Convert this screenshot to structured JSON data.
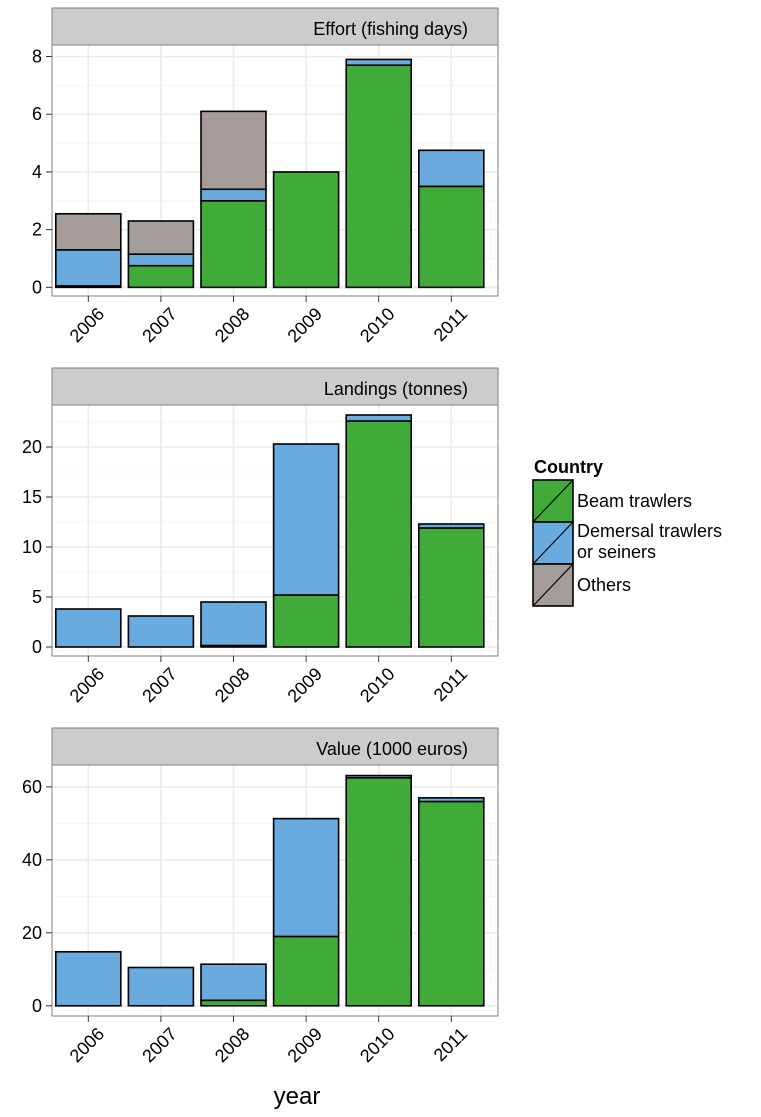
{
  "colors": {
    "strip_bg": "#cccccc",
    "panel_border": "#7f7f7f",
    "grid": "#ebebeb"
  },
  "xlabel": "year",
  "legend": {
    "title": "Country",
    "position": "right",
    "entries": [
      {
        "label_lines": [
          "Beam trawlers"
        ],
        "color": "#41ab3a"
      },
      {
        "label_lines": [
          "Demersal trawlers",
          "or seiners"
        ],
        "color": "#6aabdf"
      },
      {
        "label_lines": [
          "Others"
        ],
        "color": "#a39c98"
      }
    ]
  },
  "chart_data": [
    {
      "type": "bar",
      "stacked": true,
      "title": "Effort (fishing days)",
      "categories": [
        "2006",
        "2007",
        "2008",
        "2009",
        "2010",
        "2011"
      ],
      "series": [
        {
          "name": "Beam trawlers",
          "values": [
            0.05,
            0.75,
            3.0,
            4.0,
            7.7,
            3.5
          ]
        },
        {
          "name": "Demersal trawlers or seiners",
          "values": [
            1.25,
            0.4,
            0.4,
            0.0,
            0.2,
            1.25
          ]
        },
        {
          "name": "Others",
          "values": [
            1.25,
            1.15,
            2.7,
            0.0,
            0.0,
            0.0
          ]
        }
      ],
      "ylim": [
        -0.3,
        8.4
      ],
      "yticks": [
        0,
        2,
        4,
        6,
        8
      ],
      "grid": true
    },
    {
      "type": "bar",
      "stacked": true,
      "title": "Landings (tonnes)",
      "categories": [
        "2006",
        "2007",
        "2008",
        "2009",
        "2010",
        "2011"
      ],
      "series": [
        {
          "name": "Beam trawlers",
          "values": [
            0.0,
            0.0,
            0.15,
            5.2,
            22.6,
            11.9
          ]
        },
        {
          "name": "Demersal trawlers or seiners",
          "values": [
            3.8,
            3.1,
            4.35,
            15.1,
            0.6,
            0.4
          ]
        },
        {
          "name": "Others",
          "values": [
            0.0,
            0.0,
            0.0,
            0.0,
            0.0,
            0.0
          ]
        }
      ],
      "ylim": [
        -0.9,
        24.2
      ],
      "yticks": [
        0,
        5,
        10,
        15,
        20
      ],
      "grid": true
    },
    {
      "type": "bar",
      "stacked": true,
      "title": "Value (1000 euros)",
      "categories": [
        "2006",
        "2007",
        "2008",
        "2009",
        "2010",
        "2011"
      ],
      "series": [
        {
          "name": "Beam trawlers",
          "values": [
            0.0,
            0.0,
            1.5,
            19.0,
            62.5,
            56.0
          ]
        },
        {
          "name": "Demersal trawlers or seiners",
          "values": [
            14.8,
            10.5,
            9.9,
            32.3,
            0.6,
            1.0
          ]
        },
        {
          "name": "Others",
          "values": [
            0.0,
            0.0,
            0.0,
            0.0,
            0.0,
            0.0
          ]
        }
      ],
      "ylim": [
        -2.8,
        66.0
      ],
      "yticks": [
        0,
        20,
        40,
        60
      ],
      "grid": true
    }
  ]
}
